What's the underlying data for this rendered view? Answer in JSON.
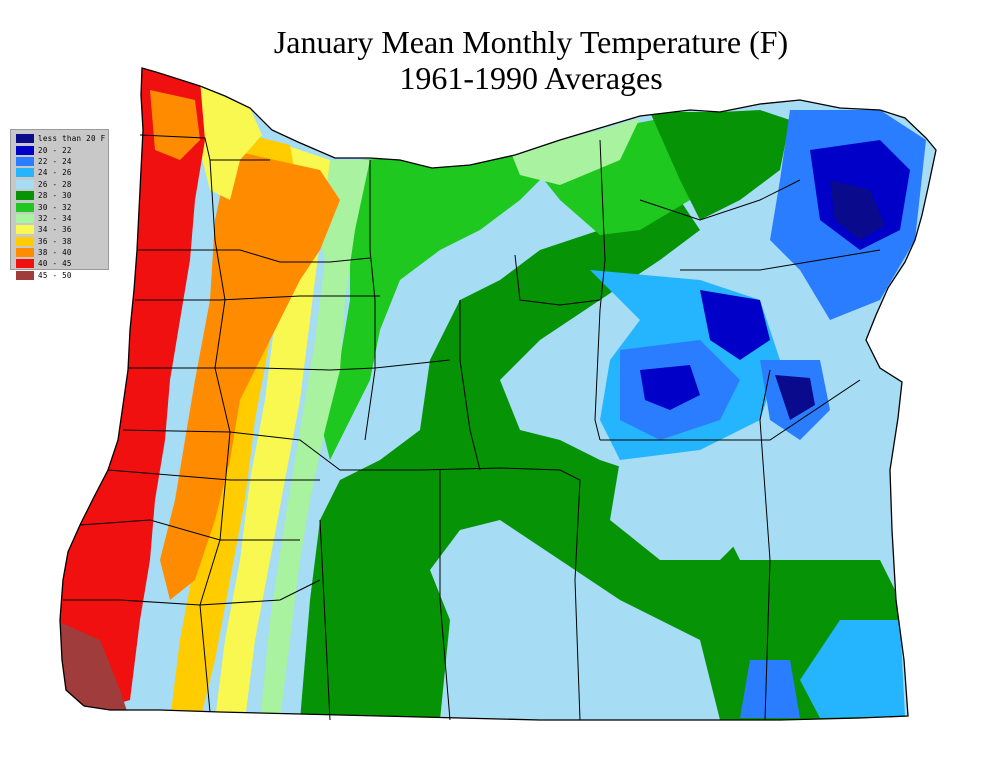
{
  "title": {
    "line1": "January Mean Monthly Temperature (F)",
    "line2": "1961-1990 Averages"
  },
  "legend": {
    "items": [
      {
        "label": "less than 20 F",
        "color": "#0a0a8c"
      },
      {
        "label": "20 - 22",
        "color": "#0000c8"
      },
      {
        "label": "22 - 24",
        "color": "#2a7dff"
      },
      {
        "label": "24 - 26",
        "color": "#25b5ff"
      },
      {
        "label": "26 - 28",
        "color": "#a6dcf4"
      },
      {
        "label": "28 - 30",
        "color": "#069406"
      },
      {
        "label": "30 - 32",
        "color": "#1ec81e"
      },
      {
        "label": "32 - 34",
        "color": "#a8f2a0"
      },
      {
        "label": "34 - 36",
        "color": "#f8f850"
      },
      {
        "label": "36 - 38",
        "color": "#ffcc00"
      },
      {
        "label": "38 - 40",
        "color": "#ff8c00"
      },
      {
        "label": "40 - 45",
        "color": "#f01010"
      },
      {
        "label": "45 - 50",
        "color": "#a03c3c"
      }
    ]
  }
}
